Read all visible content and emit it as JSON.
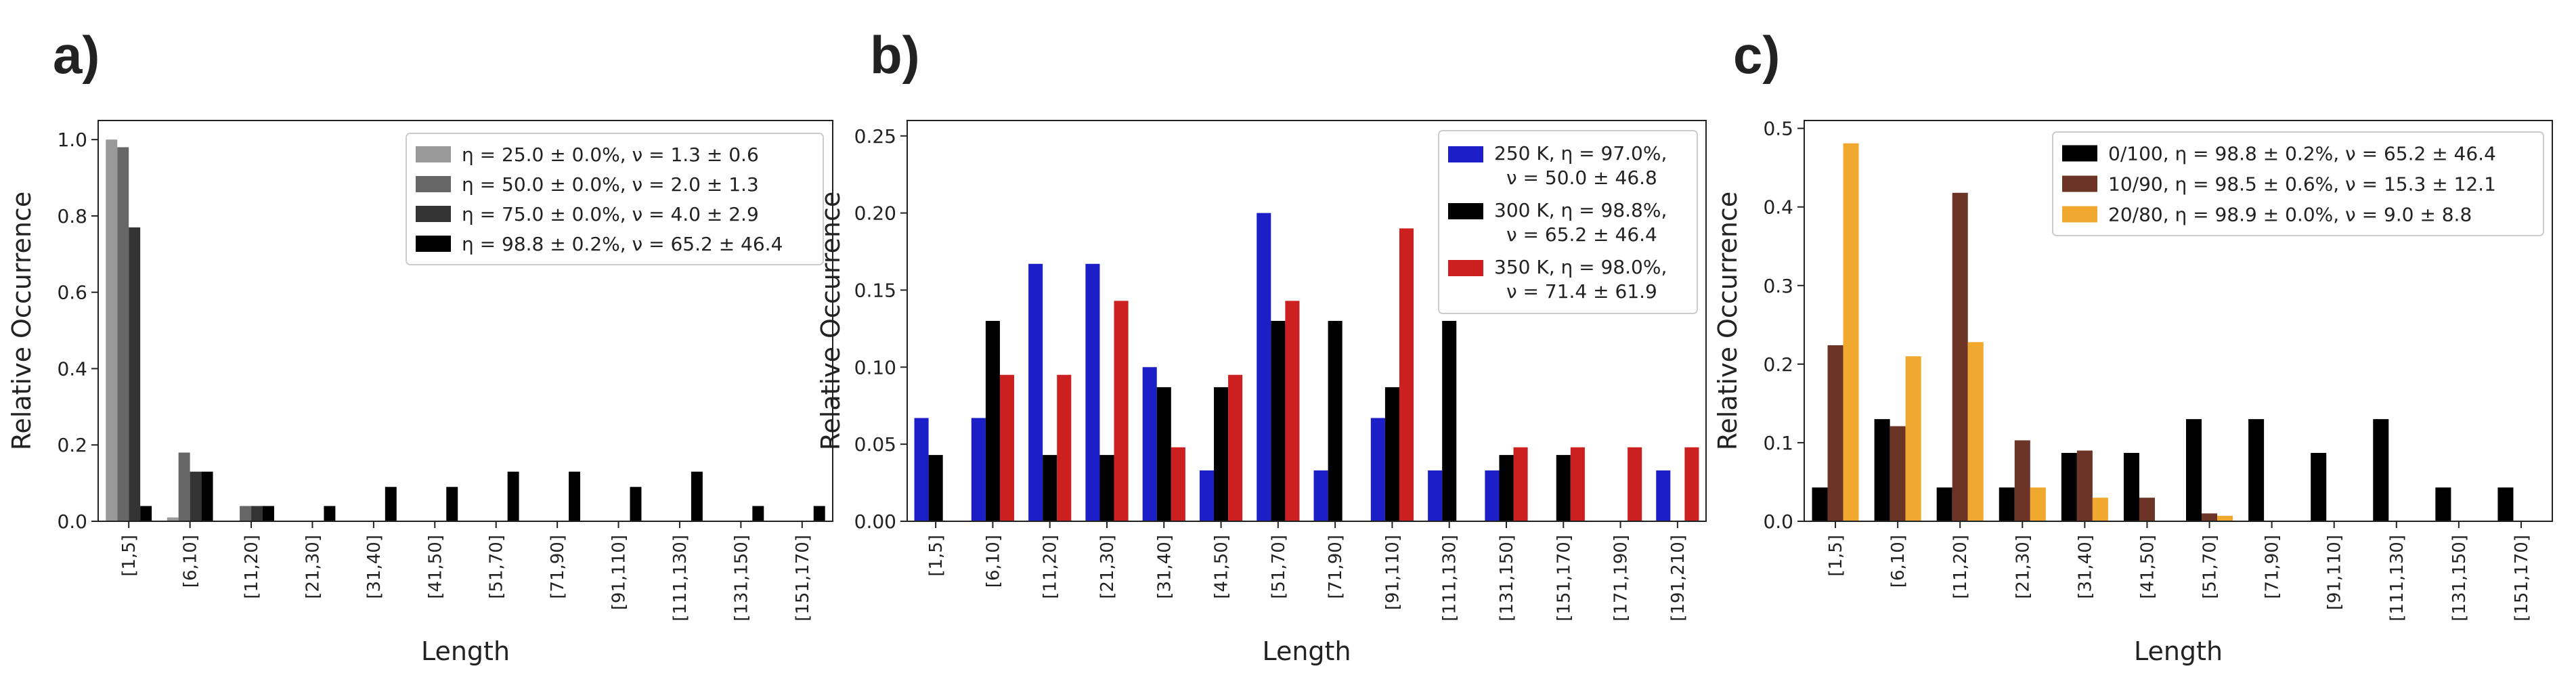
{
  "chart_data": [
    {
      "type": "bar",
      "panel_label": "a)",
      "xlabel": "Length",
      "ylabel": "Relative Occurrence",
      "ylim": [
        0,
        1.05
      ],
      "yticks": [
        0.0,
        0.2,
        0.4,
        0.6,
        0.8,
        1.0
      ],
      "ytick_labels": [
        "0.0",
        "0.2",
        "0.4",
        "0.6",
        "0.8",
        "1.0"
      ],
      "grid": false,
      "legend_position": "top-right",
      "categories": [
        "[1,5]",
        "[6,10]",
        "[11,20]",
        "[21,30]",
        "[31,40]",
        "[41,50]",
        "[51,70]",
        "[71,90]",
        "[91,110]",
        "[111,130]",
        "[131,150]",
        "[151,170]"
      ],
      "series": [
        {
          "name": "η = 25.0 ± 0.0%, ν = 1.3 ± 0.6",
          "color": "#999999",
          "values": [
            1.0,
            0.01,
            0,
            0,
            0,
            0,
            0,
            0,
            0,
            0,
            0,
            0
          ]
        },
        {
          "name": "η = 50.0 ± 0.0%, ν = 2.0 ± 1.3",
          "color": "#666666",
          "values": [
            0.98,
            0.18,
            0.04,
            0,
            0,
            0,
            0,
            0,
            0,
            0,
            0,
            0
          ]
        },
        {
          "name": "η = 75.0 ± 0.0%, ν = 4.0 ± 2.9",
          "color": "#333333",
          "values": [
            0.77,
            0.13,
            0.04,
            0,
            0,
            0,
            0,
            0,
            0,
            0,
            0,
            0
          ]
        },
        {
          "name": "η = 98.8 ± 0.2%, ν = 65.2 ± 46.4",
          "color": "#000000",
          "values": [
            0.04,
            0.13,
            0.04,
            0.04,
            0.09,
            0.09,
            0.13,
            0.13,
            0.09,
            0.13,
            0.04,
            0.04
          ]
        }
      ]
    },
    {
      "type": "bar",
      "panel_label": "b)",
      "xlabel": "Length",
      "ylabel": "Relative Occurrence",
      "ylim": [
        0,
        0.26
      ],
      "yticks": [
        0.0,
        0.05,
        0.1,
        0.15,
        0.2,
        0.25
      ],
      "ytick_labels": [
        "0.00",
        "0.05",
        "0.10",
        "0.15",
        "0.20",
        "0.25"
      ],
      "grid": false,
      "legend_position": "top-right",
      "categories": [
        "[1,5]",
        "[6,10]",
        "[11,20]",
        "[21,30]",
        "[31,40]",
        "[41,50]",
        "[51,70]",
        "[71,90]",
        "[91,110]",
        "[111,130]",
        "[131,150]",
        "[151,170]",
        "[171,190]",
        "[191,210]"
      ],
      "series": [
        {
          "name": "250 K, η = 97.0%,",
          "name_line2": "ν = 50.0 ± 46.8",
          "color": "#1c1ec8",
          "values": [
            0.067,
            0.067,
            0.167,
            0.167,
            0.1,
            0.033,
            0.2,
            0.033,
            0.067,
            0.033,
            0.033,
            0,
            0,
            0.033
          ]
        },
        {
          "name": "300 K, η = 98.8%,",
          "name_line2": "ν = 65.2 ± 46.4",
          "color": "#000000",
          "values": [
            0.043,
            0.13,
            0.043,
            0.043,
            0.087,
            0.087,
            0.13,
            0.13,
            0.087,
            0.13,
            0.043,
            0.043,
            0,
            0
          ]
        },
        {
          "name": "350 K, η = 98.0%,",
          "name_line2": "ν = 71.4 ± 61.9",
          "color": "#cc1f1f",
          "values": [
            0,
            0.095,
            0.095,
            0.143,
            0.048,
            0.095,
            0.143,
            0,
            0.19,
            0,
            0.048,
            0.048,
            0.048,
            0.048
          ]
        }
      ]
    },
    {
      "type": "bar",
      "panel_label": "c)",
      "xlabel": "Length",
      "ylabel": "Relative Occurrence",
      "ylim": [
        0,
        0.51
      ],
      "yticks": [
        0.0,
        0.1,
        0.2,
        0.3,
        0.4,
        0.5
      ],
      "ytick_labels": [
        "0.0",
        "0.1",
        "0.2",
        "0.3",
        "0.4",
        "0.5"
      ],
      "grid": false,
      "legend_position": "top-right",
      "categories": [
        "[1,5]",
        "[6,10]",
        "[11,20]",
        "[21,30]",
        "[31,40]",
        "[41,50]",
        "[51,70]",
        "[71,90]",
        "[91,110]",
        "[111,130]",
        "[131,150]",
        "[151,170]"
      ],
      "series": [
        {
          "name": "0/100, η = 98.8 ± 0.2%, ν = 65.2 ± 46.4",
          "color": "#000000",
          "values": [
            0.043,
            0.13,
            0.043,
            0.043,
            0.087,
            0.087,
            0.13,
            0.13,
            0.087,
            0.13,
            0.043,
            0.043
          ]
        },
        {
          "name": "10/90, η = 98.5 ± 0.6%, ν = 15.3 ± 12.1",
          "color": "#6b3426",
          "values": [
            0.224,
            0.121,
            0.418,
            0.103,
            0.09,
            0.03,
            0.01,
            0,
            0,
            0,
            0,
            0
          ]
        },
        {
          "name": "20/80, η = 98.9 ± 0.0%, ν = 9.0 ± 8.8",
          "color": "#f0a92e",
          "values": [
            0.481,
            0.21,
            0.228,
            0.043,
            0.03,
            0,
            0.007,
            0,
            0,
            0,
            0,
            0
          ]
        }
      ]
    }
  ]
}
